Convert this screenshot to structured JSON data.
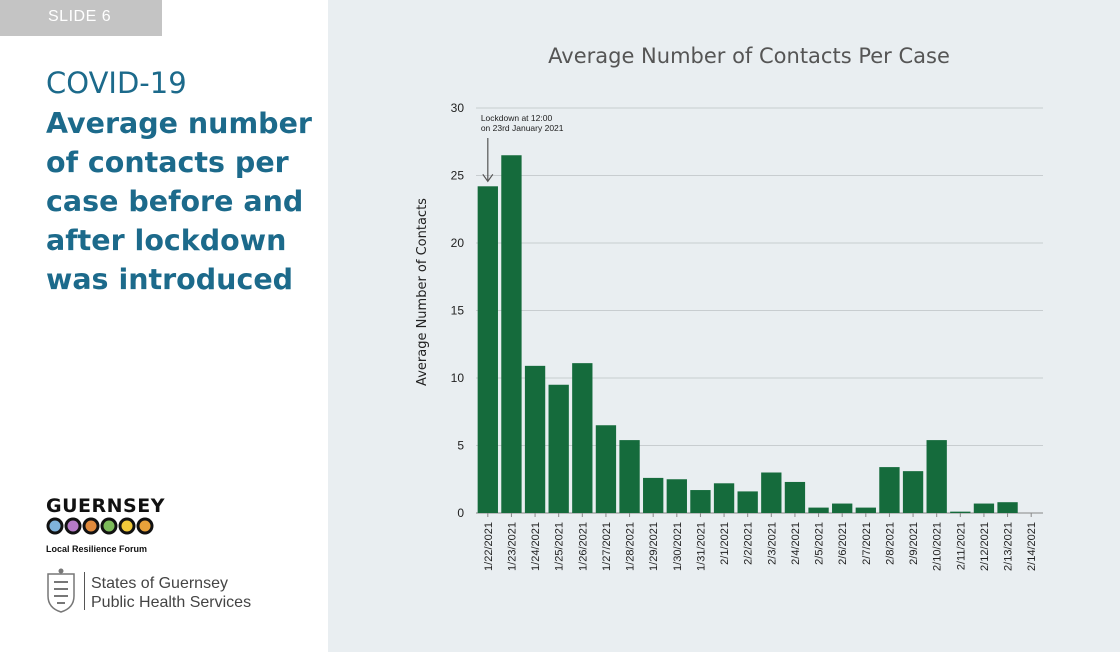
{
  "slide": {
    "tag": "SLIDE 6"
  },
  "sidebar": {
    "kicker": "COVID-19",
    "headline": "Average number of contacts per case before and after lockdown was introduced",
    "lrf": {
      "title": "GUERNSEY",
      "subtitle": "Local Resilience Forum"
    },
    "sog": {
      "line1": "States of Guernsey",
      "line2": "Public Health Services"
    }
  },
  "colors": {
    "bar": "#156b3c",
    "headline": "#1c6a8b",
    "panel": "#e9eef1"
  },
  "chart_data": {
    "type": "bar",
    "title": "Average Number of Contacts Per Case",
    "xlabel": "",
    "ylabel": "Average Number of Contacts",
    "ylim": [
      0,
      30
    ],
    "yticks": [
      "0",
      "5",
      "10",
      "15",
      "20",
      "25",
      "30"
    ],
    "grid": true,
    "categories": [
      "1/22/2021",
      "1/23/2021",
      "1/24/2021",
      "1/25/2021",
      "1/26/2021",
      "1/27/2021",
      "1/28/2021",
      "1/29/2021",
      "1/30/2021",
      "1/31/2021",
      "2/1/2021",
      "2/2/2021",
      "2/3/2021",
      "2/4/2021",
      "2/5/2021",
      "2/6/2021",
      "2/7/2021",
      "2/8/2021",
      "2/9/2021",
      "2/10/2021",
      "2/11/2021",
      "2/12/2021",
      "2/13/2021",
      "2/14/2021"
    ],
    "values": [
      24.2,
      26.5,
      10.9,
      9.5,
      11.1,
      6.5,
      5.4,
      2.6,
      2.5,
      1.7,
      2.2,
      1.6,
      3.0,
      2.3,
      0.4,
      0.7,
      0.4,
      3.4,
      3.1,
      5.4,
      0.1,
      0.7,
      0.8,
      0
    ],
    "annotation": {
      "line1": "Lockdown at 12:00",
      "line2": "on 23rd January 2021",
      "category_index": 0
    }
  }
}
